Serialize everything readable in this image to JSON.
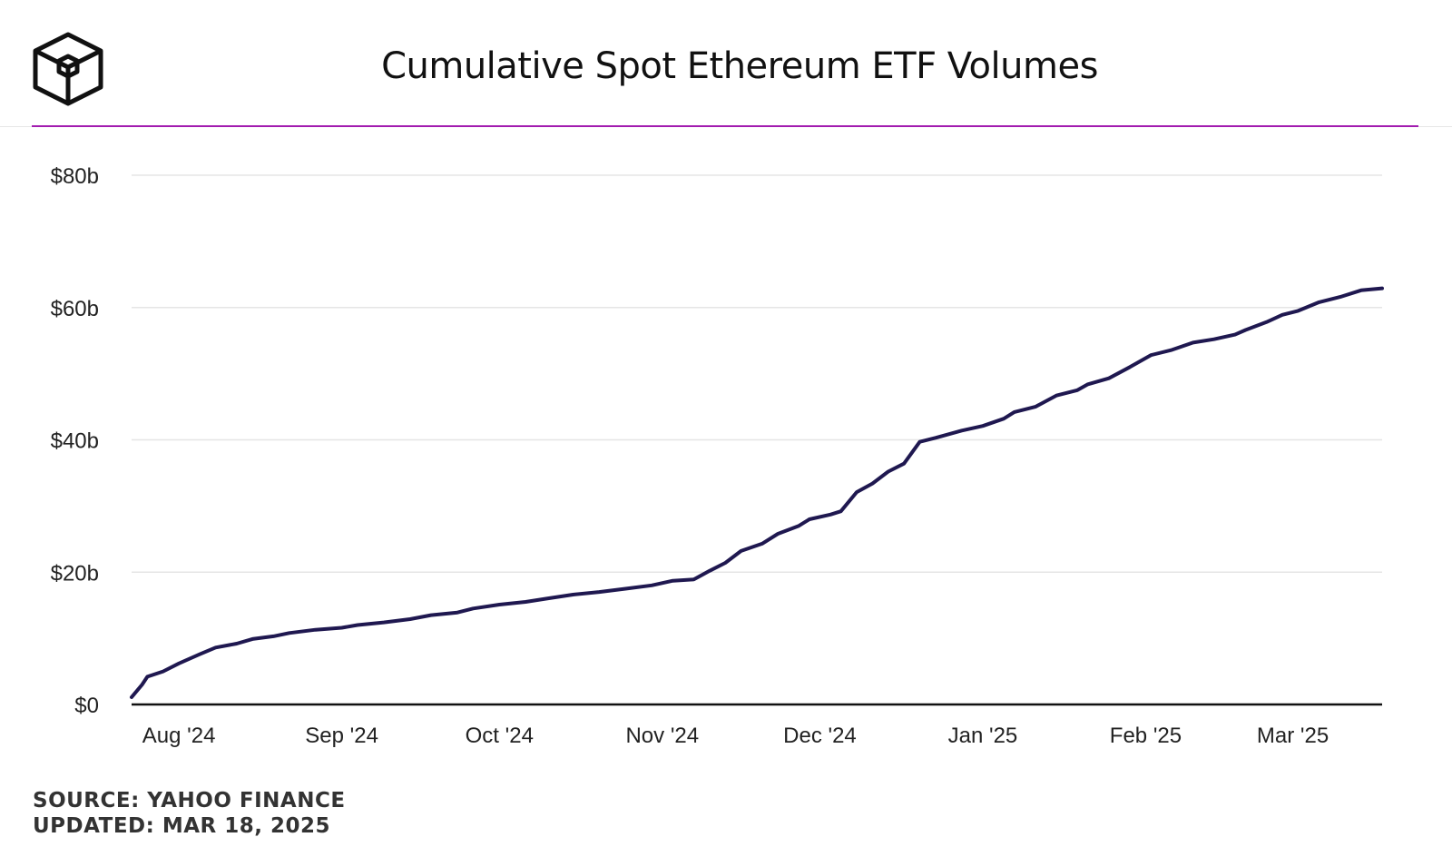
{
  "header": {
    "title": "Cumulative Spot Ethereum ETF Volumes",
    "logo_icon": "cube-logo-icon",
    "accent_color": "#a21caf"
  },
  "footer": {
    "source": "SOURCE: YAHOO FINANCE",
    "updated": "UPDATED: MAR 18, 2025"
  },
  "chart_data": {
    "type": "line",
    "title": "Cumulative Spot Ethereum ETF Volumes",
    "xlabel": "",
    "ylabel": "",
    "ylim": [
      0,
      80
    ],
    "xlim": [
      "2024-07-23",
      "2025-03-18"
    ],
    "y_unit": "billion USD",
    "grid": true,
    "line_color": "#1f1850",
    "y_ticks": [
      {
        "value": 0,
        "label": "$0"
      },
      {
        "value": 20,
        "label": "$20b"
      },
      {
        "value": 40,
        "label": "$40b"
      },
      {
        "value": 60,
        "label": "$60b"
      },
      {
        "value": 80,
        "label": "$80b"
      }
    ],
    "x_ticks": [
      {
        "date": "2024-08-01",
        "label": "Aug '24"
      },
      {
        "date": "2024-09-01",
        "label": "Sep '24"
      },
      {
        "date": "2024-10-01",
        "label": "Oct '24"
      },
      {
        "date": "2024-11-01",
        "label": "Nov '24"
      },
      {
        "date": "2024-12-01",
        "label": "Dec '24"
      },
      {
        "date": "2025-01-01",
        "label": "Jan '25"
      },
      {
        "date": "2025-02-01",
        "label": "Feb '25"
      },
      {
        "date": "2025-03-01",
        "label": "Mar '25"
      }
    ],
    "series": [
      {
        "points": [
          [
            "2024-07-23",
            1.1
          ],
          [
            "2024-07-25",
            3.0
          ],
          [
            "2024-07-26",
            4.2
          ],
          [
            "2024-07-29",
            5.0
          ],
          [
            "2024-08-01",
            6.2
          ],
          [
            "2024-08-03",
            6.9
          ],
          [
            "2024-08-05",
            7.6
          ],
          [
            "2024-08-08",
            8.6
          ],
          [
            "2024-08-12",
            9.2
          ],
          [
            "2024-08-15",
            9.9
          ],
          [
            "2024-08-19",
            10.3
          ],
          [
            "2024-08-22",
            10.8
          ],
          [
            "2024-08-27",
            11.3
          ],
          [
            "2024-09-01",
            11.6
          ],
          [
            "2024-09-04",
            12.0
          ],
          [
            "2024-09-09",
            12.4
          ],
          [
            "2024-09-14",
            12.9
          ],
          [
            "2024-09-18",
            13.5
          ],
          [
            "2024-09-23",
            13.9
          ],
          [
            "2024-09-26",
            14.5
          ],
          [
            "2024-10-01",
            15.1
          ],
          [
            "2024-10-06",
            15.5
          ],
          [
            "2024-10-10",
            16.0
          ],
          [
            "2024-10-15",
            16.6
          ],
          [
            "2024-10-20",
            17.0
          ],
          [
            "2024-10-25",
            17.5
          ],
          [
            "2024-10-30",
            18.0
          ],
          [
            "2024-11-03",
            18.7
          ],
          [
            "2024-11-07",
            18.9
          ],
          [
            "2024-11-10",
            20.2
          ],
          [
            "2024-11-13",
            21.4
          ],
          [
            "2024-11-16",
            23.2
          ],
          [
            "2024-11-20",
            24.3
          ],
          [
            "2024-11-23",
            25.8
          ],
          [
            "2024-11-27",
            27.0
          ],
          [
            "2024-11-29",
            28.0
          ],
          [
            "2024-12-03",
            28.7
          ],
          [
            "2024-12-05",
            29.2
          ],
          [
            "2024-12-08",
            32.1
          ],
          [
            "2024-12-11",
            33.4
          ],
          [
            "2024-12-14",
            35.2
          ],
          [
            "2024-12-17",
            36.4
          ],
          [
            "2024-12-20",
            39.7
          ],
          [
            "2024-12-23",
            40.3
          ],
          [
            "2024-12-28",
            41.4
          ],
          [
            "2025-01-01",
            42.1
          ],
          [
            "2025-01-05",
            43.2
          ],
          [
            "2025-01-07",
            44.2
          ],
          [
            "2025-01-11",
            45.0
          ],
          [
            "2025-01-15",
            46.7
          ],
          [
            "2025-01-19",
            47.5
          ],
          [
            "2025-01-21",
            48.4
          ],
          [
            "2025-01-25",
            49.3
          ],
          [
            "2025-01-29",
            51.0
          ],
          [
            "2025-02-02",
            52.8
          ],
          [
            "2025-02-06",
            53.6
          ],
          [
            "2025-02-10",
            54.7
          ],
          [
            "2025-02-14",
            55.2
          ],
          [
            "2025-02-18",
            55.9
          ],
          [
            "2025-02-20",
            56.6
          ],
          [
            "2025-02-24",
            57.8
          ],
          [
            "2025-02-27",
            58.9
          ],
          [
            "2025-03-02",
            59.5
          ],
          [
            "2025-03-06",
            60.8
          ],
          [
            "2025-03-10",
            61.6
          ],
          [
            "2025-03-14",
            62.6
          ],
          [
            "2025-03-18",
            62.9
          ]
        ]
      }
    ]
  }
}
